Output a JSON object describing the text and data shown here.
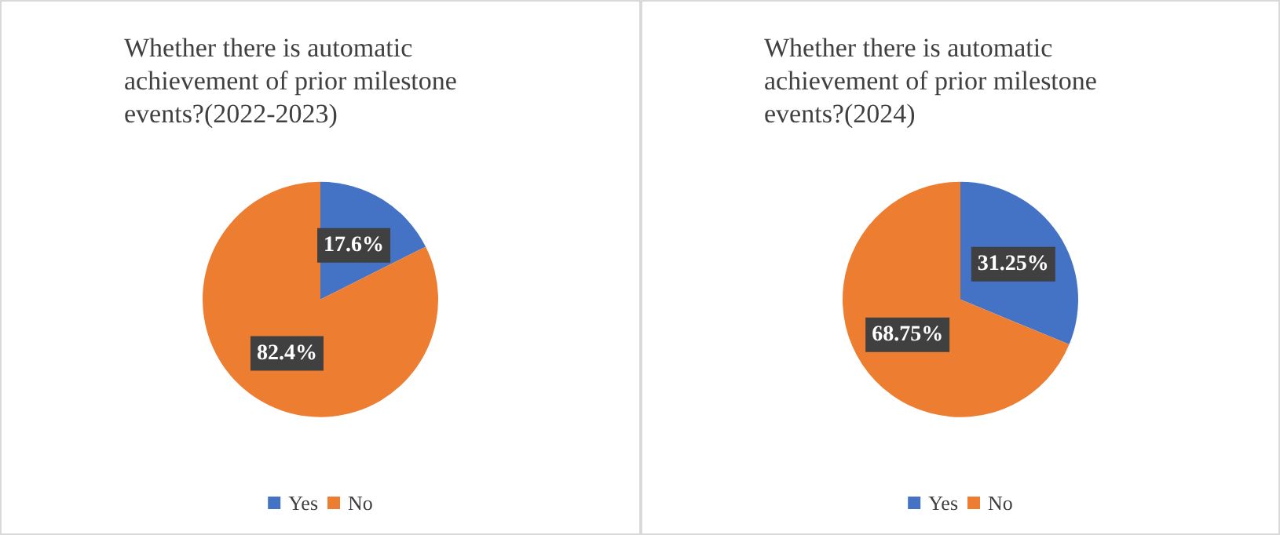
{
  "chart_data": [
    {
      "type": "pie",
      "title": "Whether there is automatic achievement of prior milestone events?(2022-2023)",
      "categories": [
        "Yes",
        "No"
      ],
      "values": [
        17.6,
        82.4
      ],
      "colors": [
        "#4472c4",
        "#ed7d31"
      ],
      "value_labels": [
        "17.6%",
        "82.4%"
      ],
      "legend": "bottom"
    },
    {
      "type": "pie",
      "title": "Whether there is automatic achievement of prior milestone events?(2024)",
      "categories": [
        "Yes",
        "No"
      ],
      "values": [
        31.25,
        68.75
      ],
      "colors": [
        "#4472c4",
        "#ed7d31"
      ],
      "value_labels": [
        "31.25%",
        "68.75%"
      ],
      "legend": "bottom"
    }
  ]
}
